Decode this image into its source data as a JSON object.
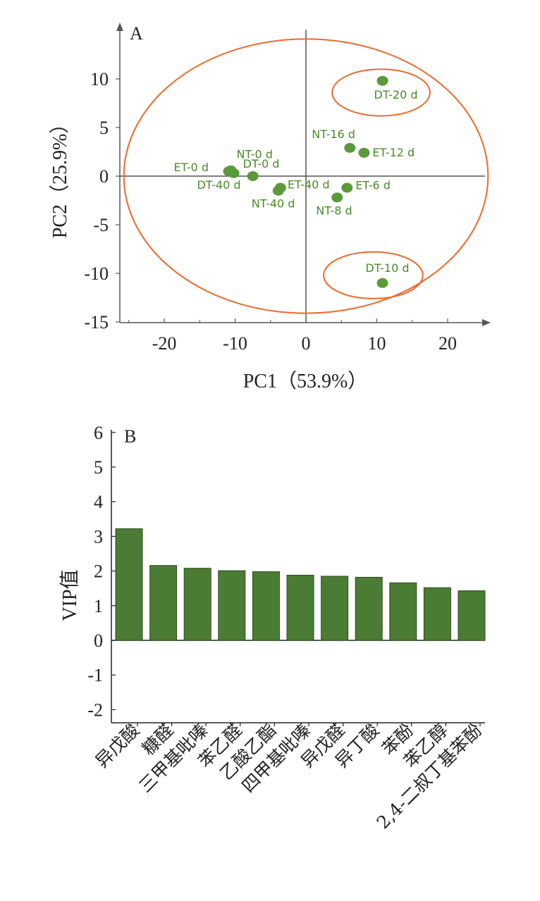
{
  "panel_a": {
    "letter": "A",
    "xlabel": "PC1（53.9%）",
    "ylabel": "PC2（25.9%）"
  },
  "panel_b": {
    "letter": "B",
    "ylabel": "VIP值"
  },
  "colors": {
    "points": "#5a9a3a",
    "ellipse": "#ee6a2a",
    "bars": "#4b7c34",
    "axis": "#555555"
  },
  "chart_data": [
    {
      "type": "scatter",
      "title": "",
      "xlabel": "PC1（53.9%）",
      "ylabel": "PC2（25.9%）",
      "xlim": [
        -25,
        25
      ],
      "ylim": [
        -15,
        15
      ],
      "xticks": [
        "-20",
        "-10",
        "0",
        "10",
        "20"
      ],
      "yticks": [
        "10",
        "5",
        "0",
        "-5",
        "-10",
        "-15"
      ],
      "points": [
        {
          "label": "DT-20 d",
          "x": 10.8,
          "y": 9.8
        },
        {
          "label": "NT-16 d",
          "x": 6.2,
          "y": 2.9
        },
        {
          "label": "ET-12 d",
          "x": 8.2,
          "y": 2.4
        },
        {
          "label": "NT-0 d",
          "x": -10.6,
          "y": 0.6
        },
        {
          "label": "ET-0 d",
          "x": -10.9,
          "y": 0.5
        },
        {
          "label": "DT-0 d",
          "x": -7.5,
          "y": 0.0
        },
        {
          "label": "DT-40 d",
          "x": -10.2,
          "y": 0.3
        },
        {
          "label": "ET-40 d",
          "x": -3.6,
          "y": -1.2
        },
        {
          "label": "NT-40 d",
          "x": -3.9,
          "y": -1.5
        },
        {
          "label": "ET-6 d",
          "x": 5.8,
          "y": -1.2
        },
        {
          "label": "NT-8 d",
          "x": 4.4,
          "y": -2.2
        },
        {
          "label": "DT-10 d",
          "x": 10.8,
          "y": -11.0
        }
      ],
      "ellipses": [
        {
          "cx": 0,
          "cy": 0,
          "rx": 25.7,
          "ry": 14.1
        },
        {
          "cx": 10.6,
          "cy": 8.6,
          "rx": 6.9,
          "ry": 2.4
        },
        {
          "cx": 9.5,
          "cy": -10.2,
          "rx": 7.0,
          "ry": 2.4
        }
      ]
    },
    {
      "type": "bar",
      "title": "",
      "xlabel": "",
      "ylabel": "VIP值",
      "ylim": [
        -2.5,
        6
      ],
      "yticks": [
        "6",
        "5",
        "4",
        "3",
        "2",
        "1",
        "0",
        "-1",
        "-2"
      ],
      "categories": [
        "异戊酸",
        "糠醛",
        "三甲基吡嗪",
        "苯乙醛",
        "乙酸乙酯",
        "四甲基吡嗪",
        "异戊醛",
        "异丁酸",
        "苯酚",
        "苯乙醇",
        "2,4-二叔丁基苯酚"
      ],
      "values": [
        3.22,
        2.16,
        2.08,
        2.01,
        1.98,
        1.88,
        1.85,
        1.82,
        1.66,
        1.52,
        1.43
      ]
    }
  ]
}
